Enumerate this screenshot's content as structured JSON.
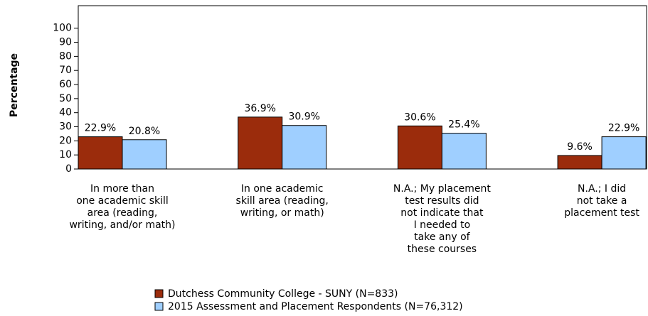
{
  "chart_data": {
    "type": "bar",
    "y_label": "Percentage",
    "categories": [
      "In more than\none academic skill\narea (reading,\nwriting, and/or math)",
      "In one academic\nskill area (reading,\nwriting, or math)",
      "N.A.; My placement\ntest results did\nnot indicate that\nI needed to\ntake any of\nthese courses",
      "N.A.; I did\nnot take a\nplacement test"
    ],
    "series": [
      {
        "name": "Dutchess Community College - SUNY (N=833)",
        "color": "#9b2c0c",
        "values": [
          22.9,
          36.9,
          30.6,
          9.6
        ],
        "value_labels": [
          "22.9%",
          "36.9%",
          "30.6%",
          "9.6%"
        ]
      },
      {
        "name": "2015 Assessment and Placement Respondents (N=76,312)",
        "color": "#9fcfff",
        "values": [
          20.8,
          30.9,
          25.4,
          22.9
        ],
        "value_labels": [
          "20.8%",
          "30.9%",
          "25.4%",
          "22.9%"
        ]
      }
    ],
    "ylim": [
      0,
      116
    ],
    "yticks": [
      0,
      10,
      20,
      30,
      40,
      50,
      60,
      70,
      80,
      90,
      100
    ]
  }
}
